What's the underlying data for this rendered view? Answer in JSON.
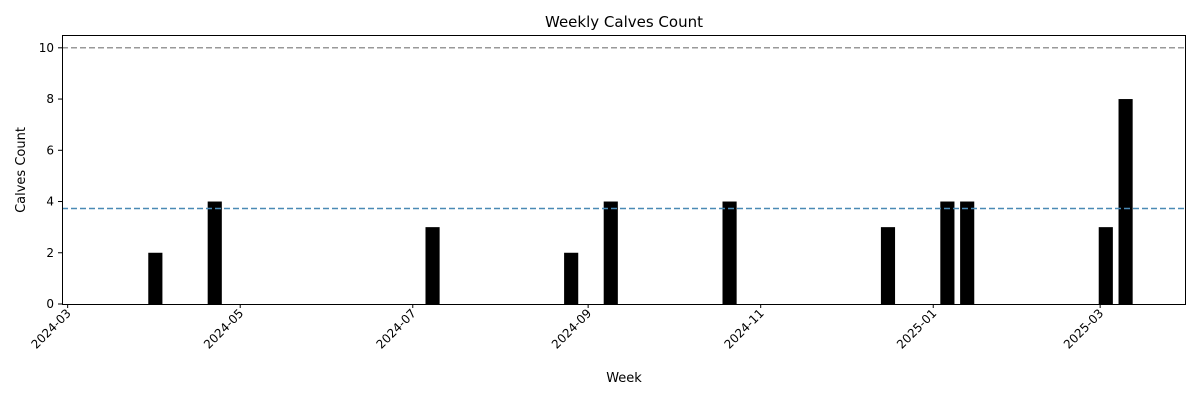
{
  "chart_data": {
    "type": "bar",
    "title": "Weekly Calves Count",
    "xlabel": "Week",
    "ylabel": "Calves Count",
    "x_tick_labels": [
      "2024-03",
      "2024-05",
      "2024-07",
      "2024-09",
      "2024-11",
      "2025-01",
      "2025-03"
    ],
    "y_ticks": [
      0,
      2,
      4,
      6,
      8,
      10
    ],
    "xlim": [
      "2024-02-28",
      "2025-03-31"
    ],
    "ylim": [
      0,
      10.5
    ],
    "grid": false,
    "bar_color": "#000000",
    "bars": [
      {
        "week": "2024-04-01",
        "value": 2
      },
      {
        "week": "2024-04-22",
        "value": 4
      },
      {
        "week": "2024-07-08",
        "value": 3
      },
      {
        "week": "2024-08-26",
        "value": 2
      },
      {
        "week": "2024-09-09",
        "value": 4
      },
      {
        "week": "2024-10-21",
        "value": 4
      },
      {
        "week": "2024-12-16",
        "value": 3
      },
      {
        "week": "2025-01-06",
        "value": 4
      },
      {
        "week": "2025-01-13",
        "value": 4
      },
      {
        "week": "2025-03-03",
        "value": 3
      },
      {
        "week": "2025-03-10",
        "value": 8
      }
    ],
    "reference_lines": [
      {
        "value": 10,
        "color": "#999999",
        "style": "dashed"
      },
      {
        "value": 3.73,
        "color": "#4a8ab5",
        "style": "dashed"
      }
    ]
  }
}
